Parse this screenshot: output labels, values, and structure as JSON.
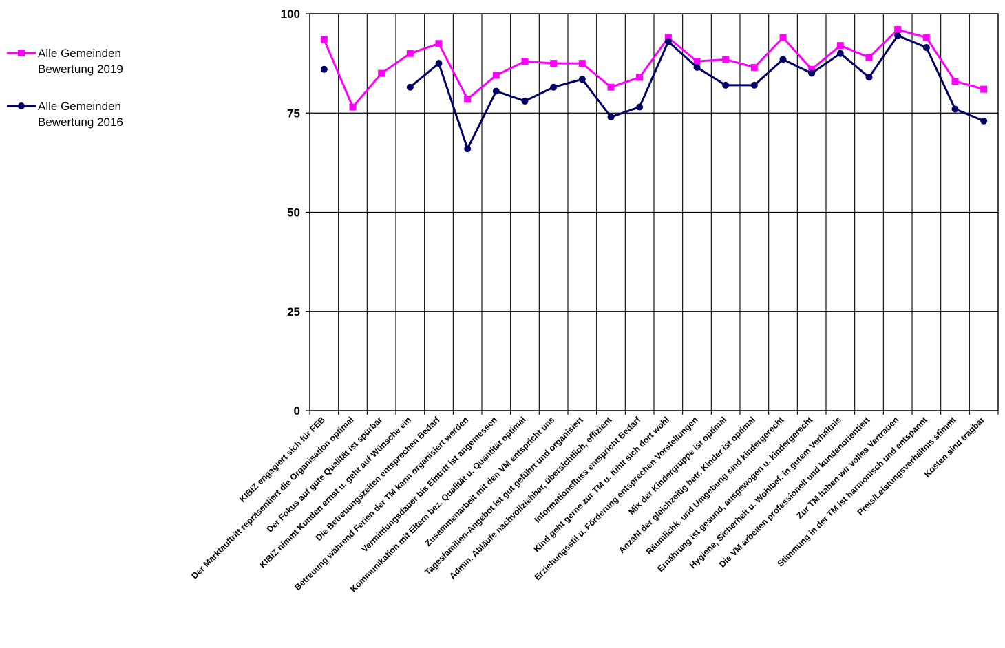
{
  "chart_data": {
    "type": "line",
    "ylim": [
      0,
      100
    ],
    "y_ticks": [
      "0",
      "25",
      "50",
      "75",
      "100"
    ],
    "y_tick_values": [
      0,
      25,
      50,
      75,
      100
    ],
    "grid": true,
    "legend_position": "top-left",
    "categories": [
      "KIBIZ engagiert sich für FEB",
      "Der Marktauftritt repräsentiert die Organisation optimal",
      "Der Fokus auf gute Qualität ist spürbar",
      "KIBIZ nimmt Kunden ernst u. geht auf Wünsche ein",
      "Die Betreuungszeiten entsprechen Bedarf",
      "Betreuung während Ferien der TM kann organisiert werden",
      "Vermittlungsdauer bis Eintritt ist angemessen",
      "Kommunikation mit Eltern bez. Qualität u. Quantität optimal",
      "Zusammenarbeit mit den VM entspricht uns",
      "Tagesfamilien-Angebot ist gut geführt und organisiert",
      "Admin. Abläufe nachvollziehbar, übersichtlich, effizient",
      "Informationsfluss entspricht Bedarf",
      "Kind geht gerne zur TM u. fühlt sich dort wohl",
      "Erziehungsstil u. Förderung entsprechen Vorstellungen",
      "Mix der Kindergruppe ist optimal",
      "Anzahl der gleichzeitig betr. Kinder ist optimal",
      "Räumlichk. und Umgebung sind kindergerecht",
      "Ernährung ist gesund, ausgewogen u. kindergerecht",
      "Hygiene, Sicherheit u. Wohlbef. in gutem Verhältnis",
      "Die VM arbeiten professionell und kundenorientiert",
      "Zur TM haben wir volles Vertrauen",
      "Stimmung in der TM ist harmonisch und entspannt",
      "Preis/Leistungsverhältnis stimmt",
      "Kosten sind tragbar"
    ],
    "series": [
      {
        "name": "Alle Gemeinden Bewertung 2019",
        "legend_lines": [
          "Alle Gemeinden",
          "Bewertung 2019"
        ],
        "color": "#ff00ff",
        "marker": "square",
        "values": [
          93.5,
          76.5,
          85,
          90,
          92.5,
          78.5,
          84.5,
          88,
          87.5,
          87.5,
          81.5,
          84,
          94,
          88,
          88.5,
          86.5,
          94,
          86,
          92,
          89,
          96,
          94,
          83,
          81
        ]
      },
      {
        "name": "Alle Gemeinden Bewertung 2016",
        "legend_lines": [
          "Alle Gemeinden",
          "Bewertung 2016"
        ],
        "color": "#000066",
        "marker": "circle",
        "values": [
          86,
          null,
          null,
          81.5,
          87.5,
          66,
          80.5,
          78,
          81.5,
          83.5,
          74,
          76.5,
          93,
          86.5,
          82,
          82,
          88.5,
          85,
          90,
          84,
          94.5,
          91.5,
          76,
          73
        ]
      }
    ]
  }
}
